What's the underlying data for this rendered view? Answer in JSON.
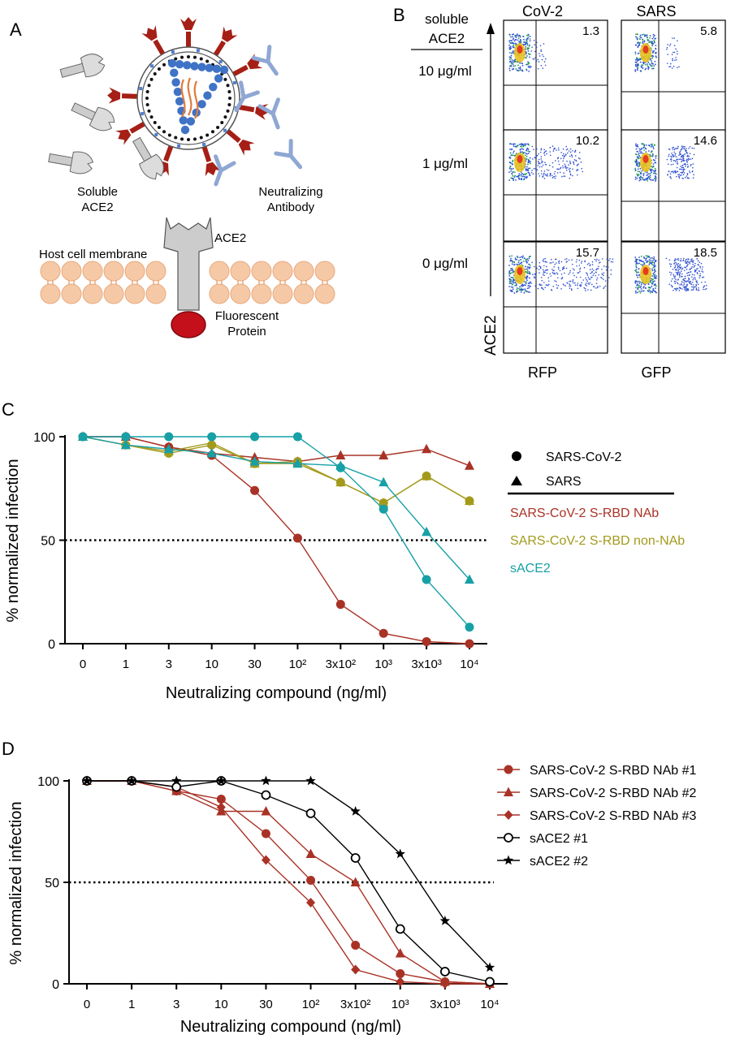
{
  "panelA": {
    "letter": "A",
    "soluble_ace2": [
      "Soluble",
      "ACE2"
    ],
    "neutralizing_antibody": [
      "Neutralizing",
      "Antibody"
    ],
    "host_membrane": "Host cell membrane",
    "ace2": "ACE2",
    "fluorescent_protein": [
      "Fluorescent",
      "Protein"
    ],
    "colors": {
      "spike": "#a51f16",
      "antibody": "#8fa7d3",
      "ace2": "#cccccc",
      "membrane": "#f6c9a6",
      "rna": "#e07b38",
      "nucleocapsid": "#3f73c6",
      "fluor": "#c4101a"
    }
  },
  "panelB": {
    "letter": "B",
    "soluble_header": [
      "soluble",
      "ACE2"
    ],
    "columns": [
      "CoV-2",
      "SARS"
    ],
    "rows": [
      "10 μg/ml",
      "1 μg/ml",
      "0 μg/ml"
    ],
    "y_label": "ACE2",
    "x_labels": [
      "RFP",
      "GFP"
    ],
    "values": [
      [
        "1.3",
        "5.8"
      ],
      [
        "10.2",
        "14.6"
      ],
      [
        "15.7",
        "18.5"
      ]
    ]
  },
  "chart_data": [
    {
      "type": "line",
      "panel": "C",
      "xlabel": "Neutralizing compound (ng/ml)",
      "ylabel": "% normalized infection",
      "categories": [
        "0",
        "1",
        "3",
        "10",
        "30",
        "10²",
        "3x10²",
        "10³",
        "3x10³",
        "10⁴"
      ],
      "ylim": [
        0,
        100
      ],
      "yticks": [
        "0",
        "50",
        "100"
      ],
      "reference_line": 50,
      "legend_markers": [
        {
          "marker": "circle",
          "label": "SARS-CoV-2"
        },
        {
          "marker": "triangle",
          "label": "SARS"
        }
      ],
      "legend_colors": [
        {
          "label": "SARS-CoV-2 S-RBD NAb",
          "color": "#a93226"
        },
        {
          "label": "SARS-CoV-2 S-RBD non-NAb",
          "color": "#a39a1c"
        },
        {
          "label": "sACE2",
          "color": "#17a0a6"
        }
      ],
      "series": [
        {
          "group": 0,
          "virus": 0,
          "marker": "circle",
          "values": [
            100,
            100,
            95,
            91,
            74,
            51,
            19,
            5,
            1,
            0
          ]
        },
        {
          "group": 0,
          "virus": 1,
          "marker": "triangle",
          "values": [
            100,
            100,
            95,
            92,
            90,
            88,
            91,
            91,
            94,
            86
          ]
        },
        {
          "group": 1,
          "virus": 0,
          "marker": "circle",
          "values": [
            100,
            96,
            92,
            96,
            87,
            88,
            78,
            68,
            81,
            69
          ]
        },
        {
          "group": 1,
          "virus": 1,
          "marker": "triangle",
          "values": [
            100,
            96,
            93,
            97,
            87,
            87,
            78,
            68,
            81,
            69
          ]
        },
        {
          "group": 2,
          "virus": 0,
          "marker": "circle",
          "values": [
            100,
            100,
            100,
            100,
            100,
            100,
            85,
            65,
            31,
            8
          ]
        },
        {
          "group": 2,
          "virus": 1,
          "marker": "triangle",
          "values": [
            100,
            96,
            94,
            92,
            88,
            87,
            86,
            78,
            54,
            31
          ]
        }
      ]
    },
    {
      "type": "line",
      "panel": "D",
      "xlabel": "Neutralizing compound (ng/ml)",
      "ylabel": "% normalized infection",
      "categories": [
        "0",
        "1",
        "3",
        "10",
        "30",
        "10²",
        "3x10²",
        "10³",
        "3x10³",
        "10⁴"
      ],
      "ylim": [
        0,
        100
      ],
      "yticks": [
        "0",
        "50",
        "100"
      ],
      "reference_line": 50,
      "series": [
        {
          "name": "SARS-CoV-2 S-RBD NAb #1",
          "marker": "circle",
          "color": "#a93226",
          "values": [
            100,
            100,
            95,
            91,
            74,
            51,
            19,
            5,
            1,
            0
          ]
        },
        {
          "name": "SARS-CoV-2 S-RBD NAb #2",
          "marker": "triangle",
          "color": "#a93226",
          "values": [
            100,
            100,
            95,
            85,
            85,
            64,
            50,
            15,
            1,
            0
          ]
        },
        {
          "name": "SARS-CoV-2 S-RBD NAb #3",
          "marker": "diamond",
          "color": "#a93226",
          "values": [
            100,
            100,
            97,
            87,
            61,
            40,
            7,
            1,
            0,
            0
          ]
        },
        {
          "name": "sACE2 #1",
          "marker": "open-circle",
          "color": "#000000",
          "values": [
            100,
            100,
            97,
            100,
            93,
            84,
            62,
            27,
            6,
            1
          ]
        },
        {
          "name": "sACE2 #2",
          "marker": "star",
          "color": "#000000",
          "values": [
            100,
            100,
            100,
            100,
            100,
            100,
            85,
            64,
            31,
            8
          ]
        }
      ]
    }
  ],
  "panel_letters": {
    "c": "C",
    "d": "D"
  }
}
